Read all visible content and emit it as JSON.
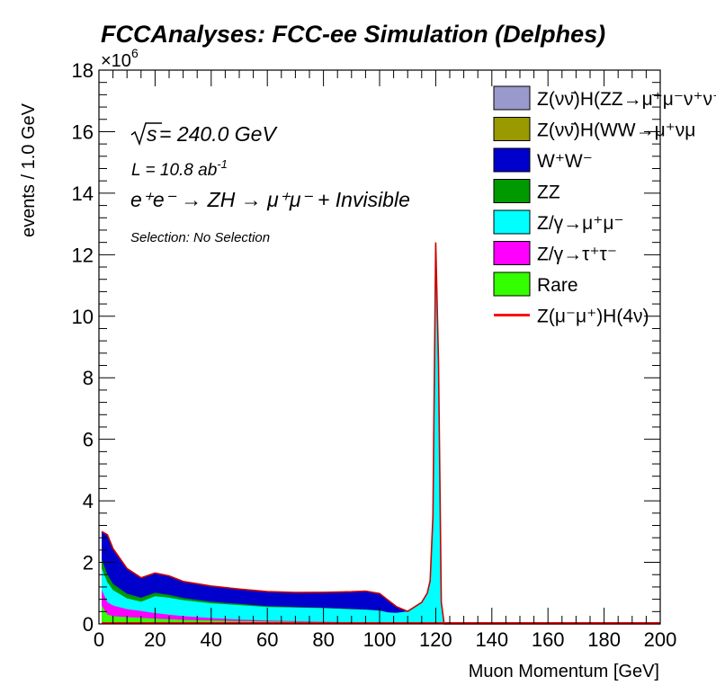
{
  "title": "FCCAnalyses: FCC-ee Simulation (Delphes)",
  "annotations": {
    "sqrt_s_label": "s",
    "sqrt_s_value": " = 240.0 GeV",
    "lumi_prefix": "L = 10.8 ab",
    "lumi_exponent": "-1",
    "process": "e⁺e⁻ → ZH → μ⁺μ⁻ + Invisible",
    "selection": "Selection: No Selection",
    "multiplier_base": "×10",
    "multiplier_exponent": "6"
  },
  "colors": {
    "ZvvH_ZZ": "#9999cc",
    "ZvvH_WW": "#999900",
    "WW": "#0000cc",
    "ZZ": "#009900",
    "Zmumu": "#00ffff",
    "Ztautau": "#ff00ff",
    "Rare": "#33ff00",
    "signal": "#ff0000",
    "outline": "#cc0000"
  },
  "chart_data": {
    "type": "area",
    "stacked": true,
    "title": "FCCAnalyses: FCC-ee Simulation (Delphes)",
    "xlabel": "Muon Momentum [GeV]",
    "ylabel": "events / 1.0 GeV",
    "xlim": [
      0,
      200
    ],
    "ylim": [
      0,
      18000000
    ],
    "x_ticks": [
      "0",
      "20",
      "40",
      "60",
      "80",
      "100",
      "120",
      "140",
      "160",
      "180",
      "200"
    ],
    "y_ticks": [
      "0",
      "2",
      "4",
      "6",
      "8",
      "10",
      "12",
      "14",
      "16",
      "18"
    ],
    "y_multiplier": "×10^6",
    "grid": false,
    "legend_position": "top-right",
    "x": [
      1,
      3,
      5,
      10,
      15,
      20,
      25,
      30,
      40,
      50,
      60,
      70,
      80,
      90,
      95,
      100,
      103,
      106,
      110,
      115,
      117,
      118,
      119,
      120,
      121,
      122,
      123,
      124,
      130,
      150,
      200
    ],
    "series": [
      {
        "name": "Z(νν̄)H(ZZ→μ⁺μ⁻ν⁺ν⁻)",
        "values": [
          0,
          0,
          0,
          0,
          0,
          0,
          0,
          0,
          0,
          0,
          0,
          0,
          0,
          0,
          0,
          0,
          0,
          0,
          0,
          0,
          0,
          0,
          0,
          0,
          0,
          0,
          0,
          0,
          0,
          0,
          0
        ]
      },
      {
        "name": "Z(νν̄)H(WW→μ⁺νμ⁻ν)",
        "values": [
          0,
          0,
          0,
          0,
          0,
          0,
          0,
          0,
          0,
          0,
          0,
          0,
          0,
          0,
          0,
          0,
          0,
          0,
          0,
          0,
          0,
          0,
          0,
          0,
          0,
          0,
          0,
          0,
          0,
          0,
          0
        ]
      },
      {
        "name": "W⁺W⁻",
        "values": [
          900000,
          1300000,
          1150000,
          820000,
          650000,
          640000,
          620000,
          540000,
          510000,
          480000,
          470000,
          470000,
          500000,
          560000,
          600000,
          550000,
          400000,
          200000,
          0,
          0,
          0,
          0,
          0,
          0,
          0,
          0,
          0,
          0,
          0,
          0,
          0
        ]
      },
      {
        "name": "ZZ",
        "values": [
          300000,
          250000,
          200000,
          150000,
          130000,
          110000,
          90000,
          70000,
          50000,
          40000,
          30000,
          20000,
          15000,
          10000,
          5000,
          3000,
          2000,
          0,
          0,
          0,
          0,
          0,
          0,
          0,
          0,
          0,
          0,
          0,
          0,
          0,
          0
        ]
      },
      {
        "name": "Z/γ→μ⁺μ⁻",
        "values": [
          700000,
          650000,
          500000,
          350000,
          300000,
          550000,
          550000,
          520000,
          480000,
          470000,
          440000,
          440000,
          440000,
          420000,
          420000,
          400000,
          350000,
          350000,
          400000,
          700000,
          1000000,
          1400000,
          3500000,
          12400000,
          8500000,
          700000,
          0,
          0,
          0,
          0,
          0
        ]
      },
      {
        "name": "Z/γ→τ⁺τ⁻",
        "values": [
          500000,
          400000,
          350000,
          260000,
          220000,
          180000,
          150000,
          120000,
          80000,
          50000,
          30000,
          20000,
          10000,
          5000,
          3000,
          2000,
          0,
          0,
          0,
          0,
          0,
          0,
          0,
          0,
          0,
          0,
          0,
          0,
          0,
          0,
          0
        ]
      },
      {
        "name": "Rare",
        "values": [
          600000,
          300000,
          250000,
          220000,
          200000,
          170000,
          150000,
          130000,
          110000,
          90000,
          80000,
          70000,
          60000,
          50000,
          40000,
          30000,
          20000,
          10000,
          5000,
          0,
          0,
          0,
          0,
          0,
          0,
          0,
          0,
          0,
          0,
          0,
          0
        ]
      },
      {
        "name": "Z(μ⁻μ⁺)H(4ν)",
        "values": [
          0,
          0,
          0,
          0,
          0,
          0,
          0,
          0,
          0,
          0,
          0,
          0,
          0,
          0,
          0,
          0,
          0,
          0,
          0,
          0,
          0,
          0,
          0,
          0,
          0,
          0,
          0,
          0,
          0,
          0,
          0
        ]
      }
    ]
  },
  "legend": [
    {
      "label": "Z(νν̄)H(ZZ→μ⁺μ⁻ν⁺ν⁻",
      "color": "#9999cc",
      "kind": "box"
    },
    {
      "label": "Z(νν̄)H(WW→μ⁺νμ",
      "color": "#999900",
      "kind": "box"
    },
    {
      "label": "W⁺W⁻",
      "color": "#0000cc",
      "kind": "box"
    },
    {
      "label": "ZZ",
      "color": "#009900",
      "kind": "box"
    },
    {
      "label": "Z/γ→μ⁺μ⁻",
      "color": "#00ffff",
      "kind": "box"
    },
    {
      "label": "Z/γ→τ⁺τ⁻",
      "color": "#ff00ff",
      "kind": "box"
    },
    {
      "label": "Rare",
      "color": "#33ff00",
      "kind": "box"
    },
    {
      "label": "Z(μ⁻μ⁺)H(4ν)",
      "color": "#ff0000",
      "kind": "line"
    }
  ]
}
